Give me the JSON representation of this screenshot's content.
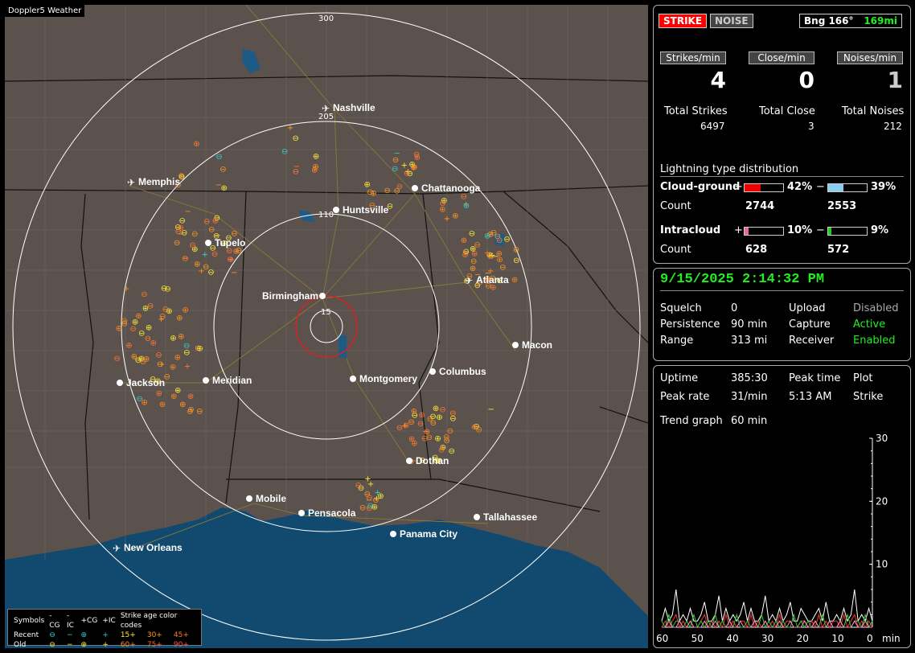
{
  "map": {
    "title": "Doppler5 Weather",
    "ring_labels": [
      "300",
      "205",
      "110",
      "15"
    ],
    "cities": [
      {
        "name": "Nashville",
        "type": "airport"
      },
      {
        "name": "Memphis",
        "type": "airport"
      },
      {
        "name": "Chattanooga",
        "type": "city"
      },
      {
        "name": "Huntsville",
        "type": "city"
      },
      {
        "name": "Tupelo",
        "type": "city"
      },
      {
        "name": "Atlanta",
        "type": "airport"
      },
      {
        "name": "Birmingham",
        "type": "city"
      },
      {
        "name": "Macon",
        "type": "city"
      },
      {
        "name": "Jackson",
        "type": "city"
      },
      {
        "name": "Meridian",
        "type": "city"
      },
      {
        "name": "Montgomery",
        "type": "city"
      },
      {
        "name": "Columbus",
        "type": "city"
      },
      {
        "name": "Dothan",
        "type": "city"
      },
      {
        "name": "Mobile",
        "type": "city"
      },
      {
        "name": "Pensacola",
        "type": "city"
      },
      {
        "name": "Tallahassee",
        "type": "city"
      },
      {
        "name": "Panama City",
        "type": "city"
      },
      {
        "name": "New Orleans",
        "type": "airport"
      }
    ],
    "legend": {
      "symbols_label": "Symbols",
      "cols": [
        "-CG",
        "-IC",
        "+CG",
        "+IC"
      ],
      "age_title": "Strike age color codes",
      "recent_label": "Recent",
      "old_label": "Old",
      "recent_ages": [
        "15+",
        "30+",
        "45+"
      ],
      "old_ages": [
        "60+",
        "75+",
        "90+"
      ],
      "recent_age_colors": [
        "#ffee33",
        "#ff9922",
        "#ff7733"
      ],
      "old_age_colors": [
        "#ff8822",
        "#ff6622",
        "#ff5533"
      ]
    }
  },
  "header": {
    "strike_tag": "STRIKE",
    "noise_tag": "NOISE",
    "bearing": "Bng 166°",
    "distance": "169mi"
  },
  "stats": {
    "strikes_label": "Strikes/min",
    "strikes_value": "4",
    "close_label": "Close/min",
    "close_value": "0",
    "noises_label": "Noises/min",
    "noises_value": "1",
    "total_strikes_label": "Total Strikes",
    "total_strikes": "6497",
    "total_close_label": "Total Close",
    "total_close": "3",
    "total_noises_label": "Total Noises",
    "total_noises": "212"
  },
  "distribution": {
    "title": "Lightning type distribution",
    "cg_label": "Cloud-ground",
    "ic_label": "Intracloud",
    "count_label": "Count",
    "plus": "+",
    "minus": "−",
    "cg_pos_pct": "42%",
    "cg_neg_pct": "39%",
    "cg_pos_count": "2744",
    "cg_neg_count": "2553",
    "ic_pos_pct": "10%",
    "ic_neg_pct": "9%",
    "ic_pos_count": "628",
    "ic_neg_count": "572",
    "cg_pos_frac": 0.42,
    "cg_neg_frac": 0.39,
    "ic_pos_frac": 0.1,
    "ic_neg_frac": 0.09
  },
  "status": {
    "datetime": "9/15/2025 2:14:32 PM",
    "squelch_label": "Squelch",
    "squelch": "0",
    "upload_label": "Upload",
    "upload": "Disabled",
    "persistence_label": "Persistence",
    "persistence": "90 min",
    "capture_label": "Capture",
    "capture": "Active",
    "range_label": "Range",
    "range": "313 mi",
    "receiver_label": "Receiver",
    "receiver": "Enabled"
  },
  "trend": {
    "uptime_label": "Uptime",
    "uptime": "385:30",
    "peak_time_label": "Peak time",
    "plot_label": "Plot",
    "peak_rate_label": "Peak rate",
    "peak_rate": "31/min",
    "peak_time": "5:13 AM",
    "plot": "Strike",
    "trend_label": "Trend graph",
    "trend_value": "60 min"
  },
  "chart_data": {
    "type": "line",
    "x_ticks": [
      "60",
      "50",
      "40",
      "30",
      "20",
      "10",
      "0"
    ],
    "x_unit": "min",
    "y_ticks": [
      "30",
      "20",
      "10"
    ],
    "ylim": [
      0,
      30
    ],
    "xlim": [
      60,
      0
    ],
    "series": [
      {
        "color": "#ffffff",
        "values": [
          1,
          3,
          1,
          2,
          6,
          1,
          2,
          1,
          3,
          1,
          1,
          2,
          4,
          1,
          1,
          2,
          5,
          1,
          3,
          1,
          2,
          1,
          2,
          4,
          1,
          3,
          1,
          1,
          2,
          5,
          1,
          2,
          1,
          3,
          1,
          2,
          4,
          1,
          1,
          3,
          2,
          1,
          1,
          2,
          3,
          1,
          4,
          1,
          1,
          2,
          1,
          3,
          1,
          2,
          6,
          1,
          2,
          1,
          3,
          1
        ]
      },
      {
        "color": "#ff3333",
        "values": [
          0,
          1,
          0,
          1,
          2,
          0,
          1,
          0,
          1,
          0,
          0,
          1,
          2,
          0,
          1,
          0,
          1,
          0,
          2,
          0,
          1,
          0,
          1,
          1,
          0,
          2,
          0,
          1,
          0,
          1,
          0,
          1,
          0,
          2,
          0,
          1,
          1,
          0,
          0,
          1,
          1,
          0,
          1,
          0,
          2,
          0,
          1,
          0,
          1,
          1,
          0,
          2,
          0,
          1,
          2,
          0,
          1,
          0,
          1,
          0
        ]
      },
      {
        "color": "#33cc33",
        "values": [
          1,
          0,
          2,
          0,
          1,
          1,
          0,
          1,
          0,
          2,
          0,
          1,
          0,
          1,
          0,
          2,
          0,
          1,
          0,
          1,
          0,
          2,
          0,
          0,
          1,
          0,
          1,
          0,
          2,
          0,
          1,
          0,
          1,
          0,
          1,
          0,
          0,
          2,
          0,
          1,
          0,
          1,
          0,
          1,
          0,
          2,
          0,
          1,
          0,
          0,
          1,
          0,
          2,
          0,
          1,
          1,
          0,
          2,
          0,
          1
        ]
      },
      {
        "color": "#ff88cc",
        "values": [
          0,
          0,
          1,
          0,
          0,
          1,
          0,
          0,
          1,
          0,
          0,
          0,
          1,
          0,
          0,
          1,
          0,
          0,
          0,
          1,
          0,
          0,
          1,
          0,
          0,
          0,
          1,
          0,
          0,
          1,
          0,
          0,
          0,
          1,
          0,
          0,
          1,
          0,
          0,
          0,
          1,
          0,
          0,
          1,
          0,
          0,
          0,
          1,
          0,
          0,
          1,
          0,
          0,
          0,
          1,
          0,
          0,
          1,
          0,
          0
        ]
      }
    ]
  }
}
